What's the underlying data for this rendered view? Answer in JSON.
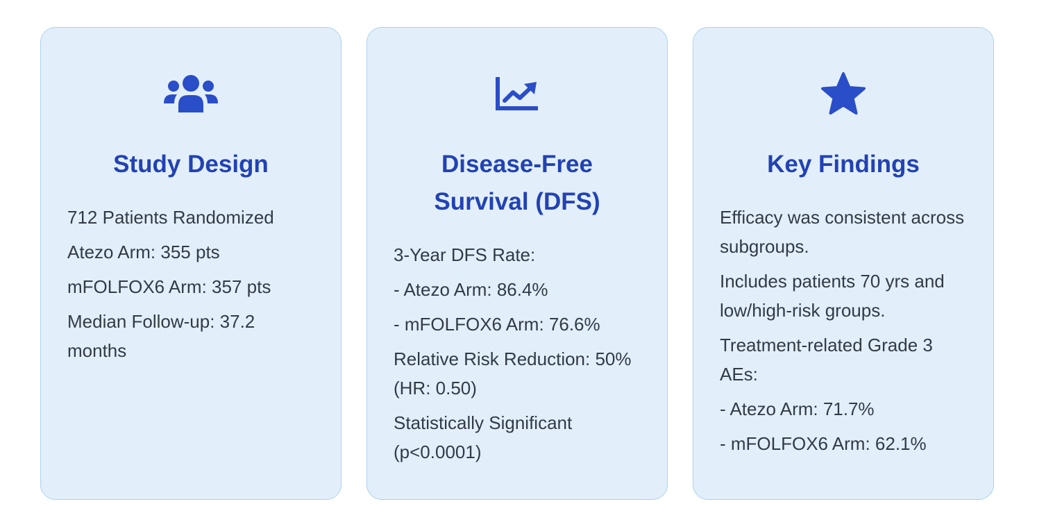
{
  "colors": {
    "card_background": "#e2effb",
    "card_border": "#a9d0f0",
    "accent": "#2242b3",
    "icon": "#2a4dc8",
    "text": "#323a45"
  },
  "cards": [
    {
      "icon": "users-group-icon",
      "title": "Study Design",
      "items": [
        "712 Patients Randomized",
        "Atezo Arm: 355 pts",
        "mFOLFOX6 Arm: 357 pts",
        "Median Follow-up: 37.2 months"
      ]
    },
    {
      "icon": "chart-line-up-icon",
      "title": "Disease-Free Survival (DFS)",
      "items": [
        "3-Year DFS Rate:",
        "- Atezo Arm: 86.4%",
        "- mFOLFOX6 Arm: 76.6%",
        "Relative Risk Reduction: 50% (HR: 0.50)",
        "Statistically Significant (p<0.0001)"
      ]
    },
    {
      "icon": "star-icon",
      "title": "Key Findings",
      "items": [
        "Efficacy was consistent across subgroups.",
        "Includes patients 70 yrs and low/high-risk groups.",
        "Treatment-related Grade 3 AEs:",
        "- Atezo Arm: 71.7%",
        "- mFOLFOX6 Arm: 62.1%"
      ]
    }
  ]
}
